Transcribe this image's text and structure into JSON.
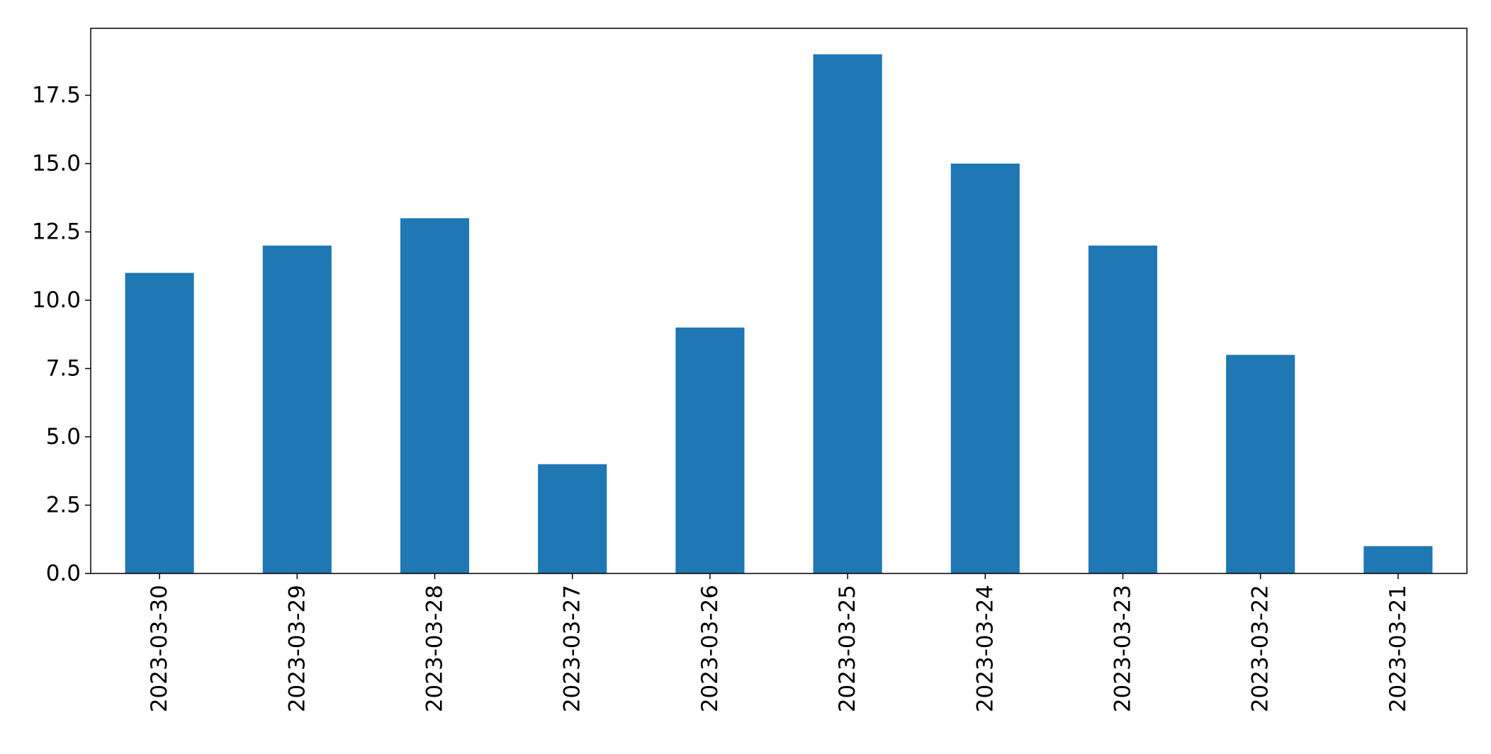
{
  "chart_data": {
    "type": "bar",
    "title": "",
    "xlabel": "",
    "ylabel": "",
    "categories": [
      "2023-03-30",
      "2023-03-29",
      "2023-03-28",
      "2023-03-27",
      "2023-03-26",
      "2023-03-25",
      "2023-03-24",
      "2023-03-23",
      "2023-03-22",
      "2023-03-21"
    ],
    "values": [
      11,
      12,
      13,
      4,
      9,
      19,
      15,
      12,
      8,
      1
    ],
    "ylim": [
      0,
      19.95
    ],
    "yticks": [
      0,
      2.5,
      5,
      7.5,
      10,
      12.5,
      15,
      17.5
    ],
    "ytick_labels": [
      "0.0",
      "2.5",
      "5.0",
      "7.5",
      "10.0",
      "12.5",
      "15.0",
      "17.5"
    ],
    "grid": false,
    "legend": "none",
    "bar_color": "#1f77b4",
    "axis_color": "#000000"
  }
}
